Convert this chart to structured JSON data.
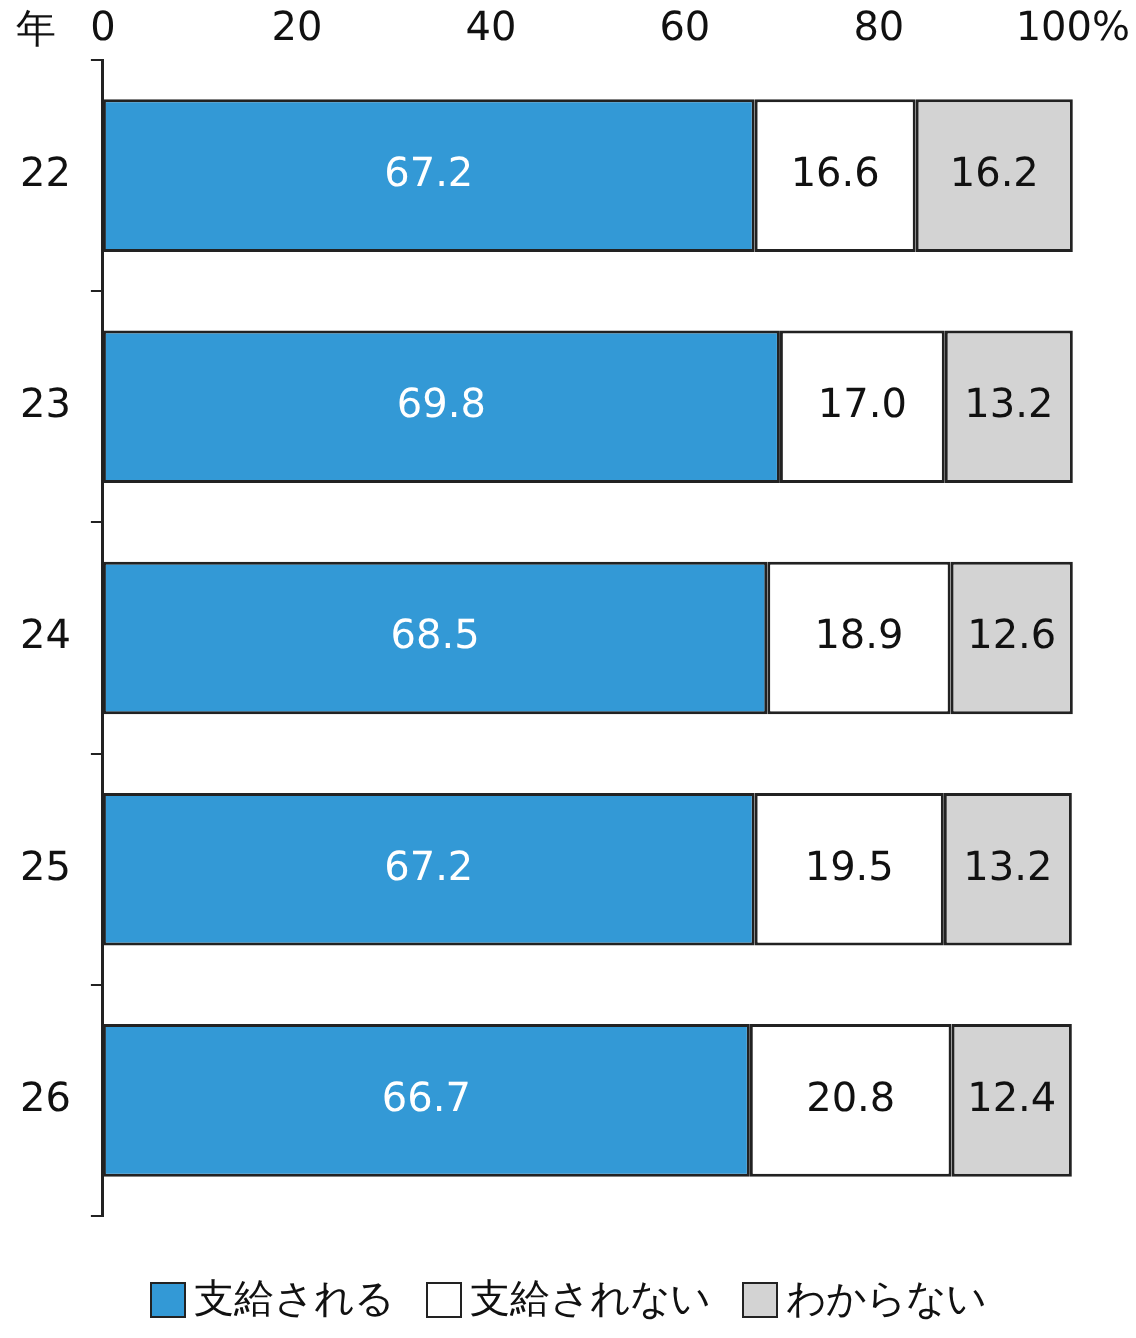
{
  "chart_data": {
    "type": "bar",
    "orientation": "horizontal",
    "stacked": true,
    "ylabel": "年",
    "categories": [
      "22",
      "23",
      "24",
      "25",
      "26"
    ],
    "xlim": [
      0,
      100
    ],
    "xticks": [
      0,
      20,
      40,
      60,
      80,
      {
        "value": 100,
        "label": "100%"
      }
    ],
    "grid": false,
    "legend": "bottom",
    "series": [
      {
        "name": "支給される",
        "color": "#3399d6",
        "values": [
          67.2,
          69.8,
          68.5,
          67.2,
          66.7
        ],
        "value_labels": [
          "67.2",
          "69.8",
          "68.5",
          "67.2",
          "66.7"
        ]
      },
      {
        "name": "支給されない",
        "color": "#ffffff",
        "values": [
          16.6,
          17.0,
          18.9,
          19.5,
          20.8
        ],
        "value_labels": [
          "16.6",
          "17.0",
          "18.9",
          "19.5",
          "20.8"
        ]
      },
      {
        "name": "わからない",
        "color": "#d3d3d3",
        "values": [
          16.2,
          13.2,
          12.6,
          13.2,
          12.4
        ],
        "value_labels": [
          "16.2",
          "13.2",
          "12.6",
          "13.2",
          "12.4"
        ]
      }
    ]
  }
}
